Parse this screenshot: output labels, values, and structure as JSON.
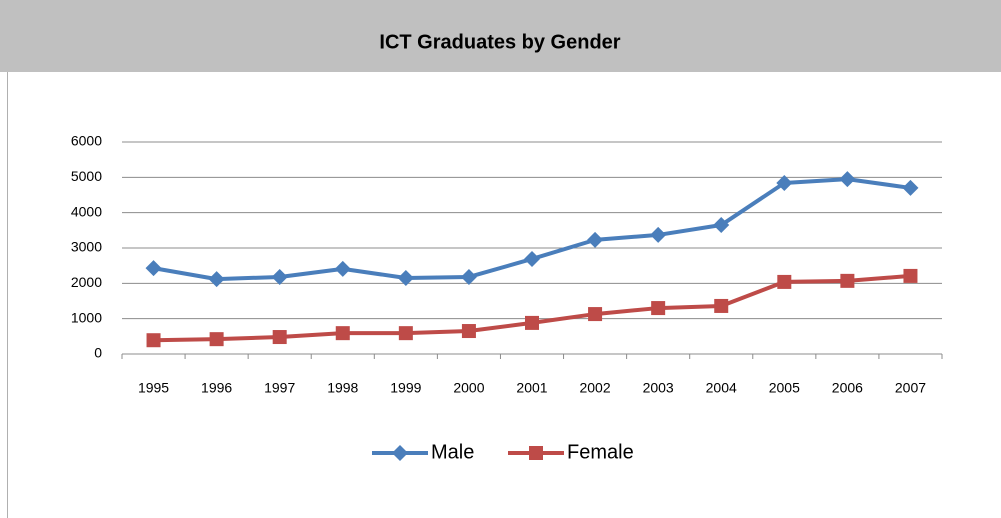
{
  "chart_data": {
    "type": "line",
    "title": "ICT Graduates by Gender",
    "categories": [
      "1995",
      "1996",
      "1997",
      "1998",
      "1999",
      "2000",
      "2001",
      "2002",
      "2003",
      "2004",
      "2005",
      "2006",
      "2007"
    ],
    "series": [
      {
        "name": "Male",
        "color": "#4a7ebb",
        "marker": "diamond",
        "values": [
          2430,
          2120,
          2180,
          2410,
          2150,
          2180,
          2690,
          3230,
          3370,
          3650,
          4840,
          4950,
          4700
        ]
      },
      {
        "name": "Female",
        "color": "#be4b48",
        "marker": "square",
        "values": [
          390,
          420,
          480,
          590,
          590,
          650,
          880,
          1130,
          1300,
          1360,
          2040,
          2070,
          2210
        ]
      }
    ],
    "ylim": [
      0,
      6000
    ],
    "yticks": [
      0,
      1000,
      2000,
      3000,
      4000,
      5000,
      6000
    ],
    "grid": true,
    "legend": "bottom"
  }
}
